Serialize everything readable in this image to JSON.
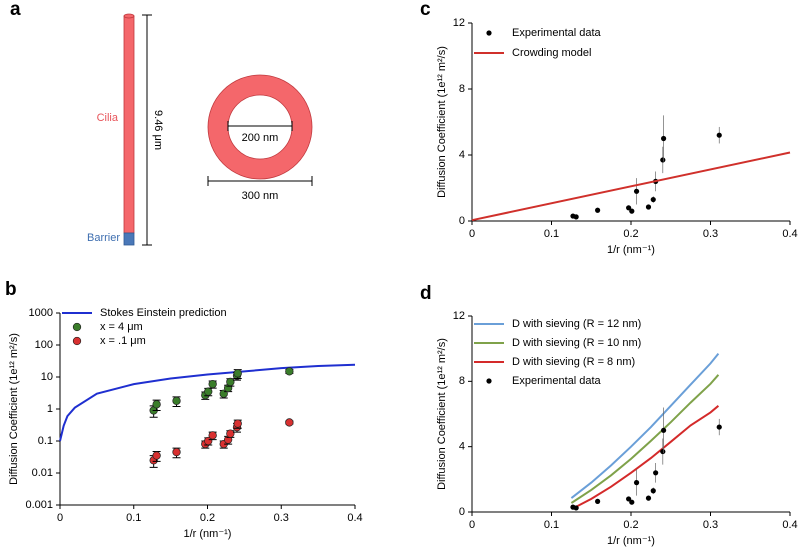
{
  "diagram": {
    "panel_label": "a",
    "cilia_label": "Cilia",
    "length_label": "9.46 μm",
    "barrier_label": "Barrier",
    "inner_diameter_label": "200 nm",
    "outer_diameter_label": "300 nm"
  },
  "chart_data": [
    {
      "type": "scatter",
      "panel_label": "b",
      "yscale": "log",
      "legend": "upper left",
      "x_label": "1/r (nm⁻¹)",
      "y_label": "Diffusion Coefficient (1e¹² m²/s)",
      "xlim": [
        0,
        0.4
      ],
      "xticks": [
        0,
        0.1,
        0.2,
        0.3,
        0.4
      ],
      "ylim": [
        0.001,
        1000
      ],
      "yticks": [
        0.001,
        0.01,
        0.1,
        1,
        10,
        100,
        1000
      ],
      "series": [
        {
          "name": "Stokes Einstein prediction",
          "type": "line",
          "color": "#1f2fd0",
          "x": [
            0,
            0.005,
            0.01,
            0.02,
            0.05,
            0.1,
            0.15,
            0.2,
            0.25,
            0.3,
            0.35,
            0.4
          ],
          "values": [
            0.1,
            0.3,
            0.6,
            1.1,
            3,
            6,
            9,
            12,
            15,
            19,
            22,
            24
          ]
        },
        {
          "name": "x =  4 μm",
          "type": "scatter",
          "color": "#3a7d2a",
          "x": [
            0.127,
            0.131,
            0.158,
            0.197,
            0.201,
            0.207,
            0.222,
            0.228,
            0.231,
            0.24,
            0.241,
            0.311
          ],
          "values": [
            0.9,
            1.4,
            1.8,
            2.7,
            3.5,
            6.0,
            3.0,
            4.5,
            7,
            11,
            13,
            15
          ],
          "errors": [
            0.35,
            0.5,
            0.6,
            0.7,
            0.9,
            1.5,
            0.8,
            1.0,
            1.8,
            3,
            4,
            2
          ]
        },
        {
          "name": "x = .1 μm",
          "type": "scatter",
          "color": "#d83030",
          "x": [
            0.127,
            0.131,
            0.158,
            0.197,
            0.201,
            0.207,
            0.222,
            0.228,
            0.231,
            0.24,
            0.241,
            0.311
          ],
          "values": [
            0.025,
            0.035,
            0.045,
            0.08,
            0.1,
            0.15,
            0.08,
            0.11,
            0.17,
            0.27,
            0.35,
            0.38
          ],
          "errors": [
            0.01,
            0.012,
            0.015,
            0.02,
            0.025,
            0.04,
            0.02,
            0.03,
            0.04,
            0.08,
            0.1,
            0.04
          ]
        }
      ]
    },
    {
      "type": "scatter",
      "panel_label": "c",
      "legend": "upper left",
      "x_label": "1/r (nm⁻¹)",
      "y_label": "Diffusion Coefficient (1e¹² m²/s)",
      "xlim": [
        0,
        0.4
      ],
      "xticks": [
        0,
        0.1,
        0.2,
        0.3,
        0.4
      ],
      "ylim": [
        0,
        12
      ],
      "yticks": [
        0,
        4,
        8,
        12
      ],
      "series": [
        {
          "name": "Experimental data",
          "type": "scatter",
          "color": "#000000",
          "x": [
            0.127,
            0.131,
            0.158,
            0.197,
            0.201,
            0.207,
            0.222,
            0.228,
            0.231,
            0.24,
            0.241,
            0.311
          ],
          "values": [
            0.3,
            0.25,
            0.65,
            0.8,
            0.6,
            1.8,
            0.85,
            1.3,
            2.4,
            3.7,
            5.0,
            5.2
          ],
          "errors": [
            0.05,
            0.05,
            0.15,
            0.15,
            0.15,
            0.8,
            0.15,
            0.2,
            0.6,
            0.8,
            1.4,
            0.5
          ]
        },
        {
          "name": "Crowding model",
          "type": "line",
          "color": "#d0302b",
          "x": [
            0,
            0.4
          ],
          "values": [
            0.05,
            4.15
          ]
        }
      ]
    },
    {
      "type": "scatter",
      "panel_label": "d",
      "legend": "upper left",
      "x_label": "1/r (nm⁻¹)",
      "y_label": "Diffusion Coefficient (1e¹² m²/s)",
      "xlim": [
        0,
        0.4
      ],
      "xticks": [
        0,
        0.1,
        0.2,
        0.3,
        0.4
      ],
      "ylim": [
        0,
        12
      ],
      "yticks": [
        0,
        4,
        8,
        12
      ],
      "series": [
        {
          "name": "D with sieving (R = 12 nm)",
          "type": "line",
          "color": "#6a9fd8",
          "x": [
            0.125,
            0.15,
            0.175,
            0.2,
            0.225,
            0.25,
            0.275,
            0.3,
            0.31
          ],
          "values": [
            0.85,
            1.8,
            2.85,
            4.0,
            5.2,
            6.5,
            7.8,
            9.1,
            9.7
          ]
        },
        {
          "name": "D with sieving (R = 10 nm)",
          "type": "line",
          "color": "#7fa24a",
          "x": [
            0.125,
            0.15,
            0.175,
            0.2,
            0.225,
            0.25,
            0.275,
            0.3,
            0.31
          ],
          "values": [
            0.55,
            1.35,
            2.25,
            3.25,
            4.35,
            5.5,
            6.7,
            7.85,
            8.4
          ]
        },
        {
          "name": "D with sieving (R = 8 nm)",
          "type": "line",
          "color": "#d42a2a",
          "x": [
            0.13,
            0.15,
            0.175,
            0.2,
            0.225,
            0.25,
            0.275,
            0.3,
            0.31
          ],
          "values": [
            0.3,
            0.8,
            1.55,
            2.4,
            3.3,
            4.3,
            5.3,
            6.1,
            6.5
          ]
        },
        {
          "name": "Experimental data",
          "type": "scatter",
          "color": "#000000",
          "x": [
            0.127,
            0.131,
            0.158,
            0.197,
            0.201,
            0.207,
            0.222,
            0.228,
            0.231,
            0.24,
            0.241,
            0.311
          ],
          "values": [
            0.3,
            0.25,
            0.65,
            0.8,
            0.6,
            1.8,
            0.85,
            1.3,
            2.4,
            3.7,
            5.0,
            5.2
          ],
          "errors": [
            0.05,
            0.05,
            0.15,
            0.15,
            0.15,
            0.8,
            0.15,
            0.2,
            0.6,
            0.8,
            1.4,
            0.5
          ]
        }
      ]
    }
  ]
}
